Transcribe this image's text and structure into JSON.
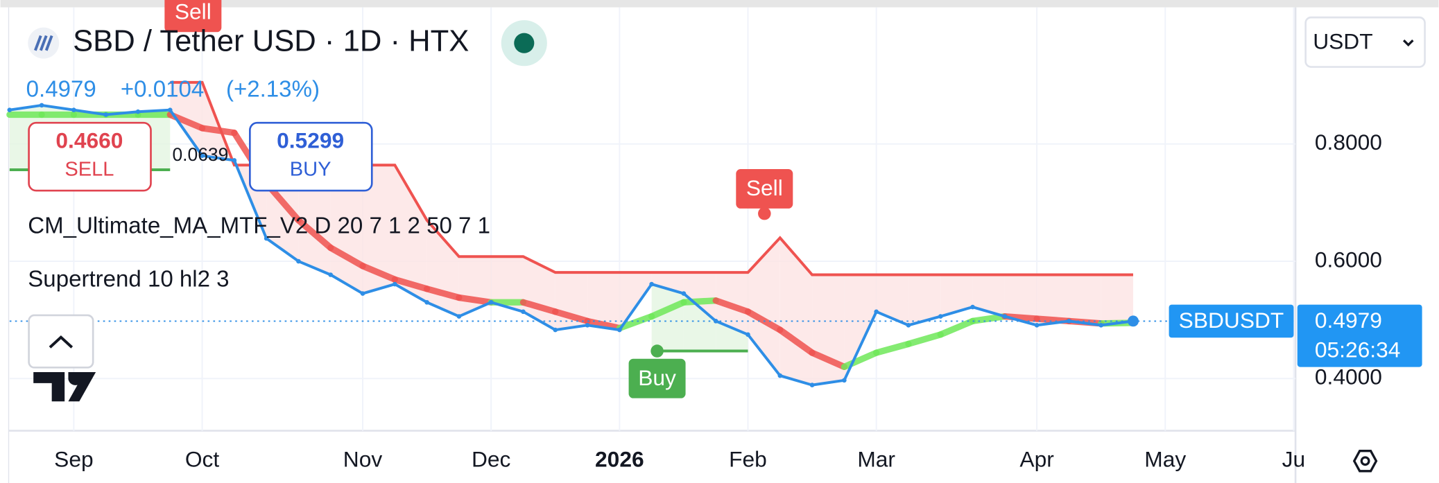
{
  "chart_data": {
    "type": "line",
    "title": "SBD / Tether USD · 1D · HTX",
    "last_price": 0.4979,
    "change": "+0.0104",
    "change_percent": "(+2.13%)",
    "sell": {
      "price": "0.4660",
      "label": "SELL"
    },
    "buy": {
      "price": "0.5299",
      "label": "BUY"
    },
    "spread": "0.0639",
    "currency": "USDT",
    "countdown": "05:26:34",
    "categories": [
      null,
      null,
      "Sep",
      null,
      null,
      null,
      "Oct",
      null,
      null,
      null,
      null,
      "Nov",
      null,
      null,
      null,
      "Dec",
      null,
      null,
      null,
      "2026",
      null,
      null,
      null,
      "Feb",
      null,
      null,
      null,
      "Mar",
      null,
      null,
      null,
      null,
      "Apr",
      null,
      null,
      null,
      "May",
      null,
      null,
      null,
      "Ju"
    ],
    "series": [
      {
        "name": "SBDUSDT",
        "color": "#2e8ee6",
        "values": [
          0.858,
          0.866,
          0.858,
          0.85,
          0.855,
          0.858,
          0.78,
          0.772,
          0.639,
          0.6,
          0.577,
          0.545,
          0.561,
          0.53,
          0.506,
          0.53,
          0.514,
          0.483,
          0.491,
          0.483,
          0.561,
          0.545,
          0.498,
          0.475,
          0.405,
          0.389,
          0.397,
          0.514,
          0.491,
          0.506,
          0.522,
          0.506,
          0.491,
          0.498,
          0.491,
          0.498,
          null,
          null,
          null,
          null,
          null
        ]
      }
    ],
    "indicators": [
      {
        "name": "CM_Ultimate_MA_MTF_V2 D 20 7 1 2 50 7 1",
        "up_color": "#6fe85a",
        "down_color": "#ef5350",
        "values": [
          0.85,
          0.85,
          0.85,
          0.85,
          0.85,
          0.85,
          0.827,
          0.819,
          0.733,
          0.67,
          0.623,
          0.592,
          0.569,
          0.553,
          0.538,
          0.53,
          0.53,
          0.514,
          0.498,
          0.486,
          0.506,
          0.53,
          0.533,
          0.514,
          0.483,
          0.444,
          0.42,
          0.444,
          0.459,
          0.475,
          0.498,
          0.506,
          0.502,
          0.498,
          0.494,
          0.495,
          null,
          null,
          null,
          null,
          null
        ]
      },
      {
        "name": "Supertrend 10 hl2 3",
        "up_color": "#4caf50",
        "down_color": "#ef5350",
        "up_values": [
          0.756,
          0.756,
          0.756,
          0.756,
          0.756,
          0.756,
          null,
          null,
          null,
          null,
          null,
          null,
          null,
          null,
          null,
          null,
          null,
          null,
          null,
          null,
          0.447,
          0.447,
          0.447,
          0.447,
          null,
          null,
          null,
          null,
          null,
          null,
          null,
          null,
          null,
          null,
          null,
          null,
          null,
          null,
          null,
          null,
          null
        ],
        "down_values": [
          null,
          null,
          null,
          null,
          null,
          0.905,
          0.905,
          0.764,
          0.764,
          0.764,
          0.764,
          0.764,
          0.764,
          0.67,
          0.608,
          0.608,
          0.608,
          0.581,
          0.581,
          0.581,
          0.581,
          0.581,
          0.581,
          0.581,
          0.64,
          0.577,
          0.577,
          0.577,
          0.577,
          0.577,
          0.577,
          0.577,
          0.577,
          0.577,
          0.577,
          0.577,
          null,
          null,
          null,
          null,
          null
        ],
        "signals": [
          "Sell",
          "Buy",
          "Sell"
        ]
      }
    ],
    "ylim": [
      0.311,
      1.033
    ],
    "yticks": [
      {
        "value": 0.4,
        "label": "0.4000"
      },
      {
        "value": 0.6,
        "label": "0.6000"
      },
      {
        "value": 0.8,
        "label": "0.8000"
      }
    ],
    "grid": true
  }
}
